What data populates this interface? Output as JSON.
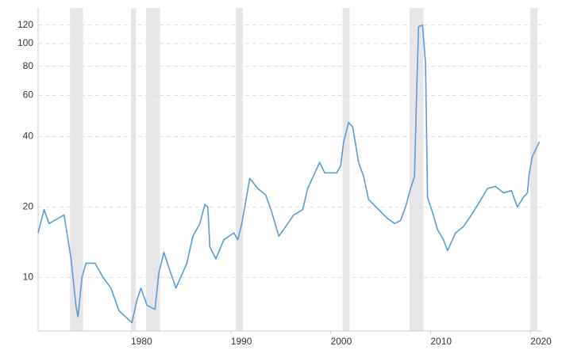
{
  "chart_data": {
    "type": "line",
    "log_scale": true,
    "grid": true,
    "x": [
      1970.7,
      1971.3,
      1971.8,
      1973.3,
      1973.7,
      1974.0,
      1974.5,
      1974.7,
      1975.1,
      1975.5,
      1976.4,
      1977.2,
      1978.0,
      1978.8,
      1979.6,
      1980.1,
      1980.6,
      1981.0,
      1981.6,
      1982.4,
      1982.8,
      1983.3,
      1983.8,
      1984.5,
      1985.6,
      1986.2,
      1986.9,
      1987.4,
      1987.7,
      1987.9,
      1988.5,
      1989.3,
      1990.3,
      1990.7,
      1991.1,
      1991.9,
      1992.7,
      1993.5,
      1994.1,
      1994.8,
      1995.5,
      1996.3,
      1997.2,
      1997.7,
      1998.9,
      1999.4,
      2000.6,
      2001.0,
      2001.3,
      2001.8,
      2002.2,
      2002.8,
      2003.3,
      2003.8,
      2004.8,
      2005.6,
      2006.4,
      2007.0,
      2007.5,
      2008.0,
      2008.4,
      2008.6,
      2008.8,
      2009.2,
      2009.5,
      2009.7,
      2010.2,
      2010.7,
      2011.3,
      2011.7,
      2012.5,
      2013.3,
      2014.1,
      2014.9,
      2015.7,
      2016.5,
      2017.3,
      2018.1,
      2018.7,
      2019.3,
      2019.7,
      2019.9,
      2020.2,
      2020.5,
      2020.9
    ],
    "series": [
      {
        "color": "#5b9bd5",
        "values": [
          15.5,
          19.5,
          17,
          18.5,
          14.5,
          12,
          7.5,
          6.8,
          10,
          11.5,
          11.5,
          10,
          9,
          7.2,
          6.7,
          6.4,
          8,
          9,
          7.6,
          7.3,
          10.5,
          12.8,
          11,
          9,
          11.5,
          15,
          17,
          20.5,
          20,
          13.5,
          12,
          14.5,
          15.5,
          14.5,
          17,
          26.5,
          24,
          22.5,
          19,
          15,
          16.5,
          18.5,
          19.5,
          24,
          31,
          28,
          28,
          30,
          38,
          46,
          44,
          31,
          27,
          21.5,
          19.5,
          18,
          17,
          17.5,
          20,
          24,
          27,
          60,
          118,
          120,
          82,
          22,
          19,
          16,
          14.5,
          13,
          15.5,
          16.5,
          18.5,
          21,
          24,
          24.5,
          23,
          23.5,
          20,
          22,
          23,
          28,
          33,
          35,
          38
        ]
      }
    ],
    "recessions": [
      [
        1973.9,
        1975.2
      ],
      [
        1980.0,
        1980.5
      ],
      [
        1981.5,
        1982.9
      ],
      [
        1990.5,
        1991.2
      ],
      [
        2001.2,
        2001.9
      ],
      [
        2007.9,
        2009.3
      ],
      [
        2020.0,
        2020.7
      ]
    ],
    "recession_color": "#e6e6e6",
    "xlim": [
      1970.7,
      2021.1
    ],
    "xticks": [
      1980,
      1990,
      2000,
      2010,
      2020
    ],
    "ylim": [
      5.9,
      142
    ],
    "yticks": [
      10,
      20,
      40,
      60,
      80,
      100,
      120
    ]
  }
}
